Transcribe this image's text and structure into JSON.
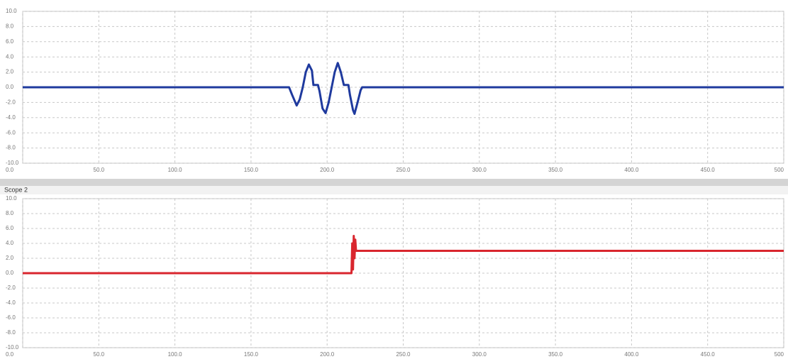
{
  "chart_data": [
    {
      "type": "line",
      "color": "#1f3a9e",
      "x": [
        0,
        175,
        177,
        180,
        182,
        184,
        186,
        188,
        190,
        191,
        194,
        195,
        197,
        199,
        201,
        203,
        205,
        207,
        209,
        211,
        212,
        214,
        215,
        217,
        218,
        220,
        222,
        223,
        500
      ],
      "values": [
        0,
        0,
        -1,
        -2.4,
        -1.6,
        0,
        2,
        3,
        2.2,
        0.3,
        0.3,
        -0.5,
        -2.8,
        -3.4,
        -2,
        0,
        2,
        3.2,
        2,
        0.3,
        0.3,
        0.3,
        -1,
        -3,
        -3.5,
        -2,
        -0.4,
        0,
        0
      ],
      "xlim": [
        0,
        500
      ],
      "ylim": [
        -10,
        10
      ],
      "xticks": [
        {
          "value": 0,
          "label": "0.0"
        },
        {
          "value": 50,
          "label": "50.0"
        },
        {
          "value": 100,
          "label": "100.0"
        },
        {
          "value": 150,
          "label": "150.0"
        },
        {
          "value": 200,
          "label": "200.0"
        },
        {
          "value": 250,
          "label": "250.0"
        },
        {
          "value": 300,
          "label": "300.0"
        },
        {
          "value": 350,
          "label": "350.0"
        },
        {
          "value": 400,
          "label": "400.0"
        },
        {
          "value": 450,
          "label": "450.0"
        },
        500
      ],
      "yticks": [
        {
          "value": -10,
          "label": "-10.0"
        },
        {
          "value": -8,
          "label": "-8.0"
        },
        {
          "value": -6,
          "label": "-6.0"
        },
        {
          "value": -4,
          "label": "-4.0"
        },
        {
          "value": -2,
          "label": "-2.0"
        },
        {
          "value": 0,
          "label": "0.0"
        },
        {
          "value": 2,
          "label": "2.0"
        },
        {
          "value": 4,
          "label": "4.0"
        },
        {
          "value": 6,
          "label": "6.0"
        },
        {
          "value": 8,
          "label": "8.0"
        },
        {
          "value": 10,
          "label": "10.0"
        }
      ],
      "grid": true
    },
    {
      "type": "line",
      "title": "Scope 2",
      "color": "#d9262e",
      "x": [
        0,
        216,
        216.5,
        217,
        217.5,
        218,
        218.5,
        219,
        220,
        500
      ],
      "values": [
        0,
        0,
        4,
        0.5,
        5,
        2,
        4.5,
        3,
        3,
        3
      ],
      "xlim": [
        0,
        500
      ],
      "ylim": [
        -10,
        10
      ],
      "xticks": [
        {
          "value": 0,
          "label": "0.0"
        },
        {
          "value": 50,
          "label": "50.0"
        },
        {
          "value": 100,
          "label": "100.0"
        },
        {
          "value": 150,
          "label": "150.0"
        },
        {
          "value": 200,
          "label": "200.0"
        },
        {
          "value": 250,
          "label": "250.0"
        },
        {
          "value": 300,
          "label": "300.0"
        },
        {
          "value": 350,
          "label": "350.0"
        },
        {
          "value": 400,
          "label": "400.0"
        },
        {
          "value": 450,
          "label": "450.0"
        },
        500
      ],
      "yticks": [
        {
          "value": -10,
          "label": "-10.0"
        },
        {
          "value": -8,
          "label": "-8.0"
        },
        {
          "value": -6,
          "label": "-6.0"
        },
        {
          "value": -4,
          "label": "-4.0"
        },
        {
          "value": -2,
          "label": "-2.0"
        },
        {
          "value": 0,
          "label": "0.0"
        },
        {
          "value": 2,
          "label": "2.0"
        },
        {
          "value": 4,
          "label": "4.0"
        },
        {
          "value": 6,
          "label": "6.0"
        },
        {
          "value": 8,
          "label": "8.0"
        },
        {
          "value": 10,
          "label": "10.0"
        }
      ],
      "grid": true
    }
  ]
}
